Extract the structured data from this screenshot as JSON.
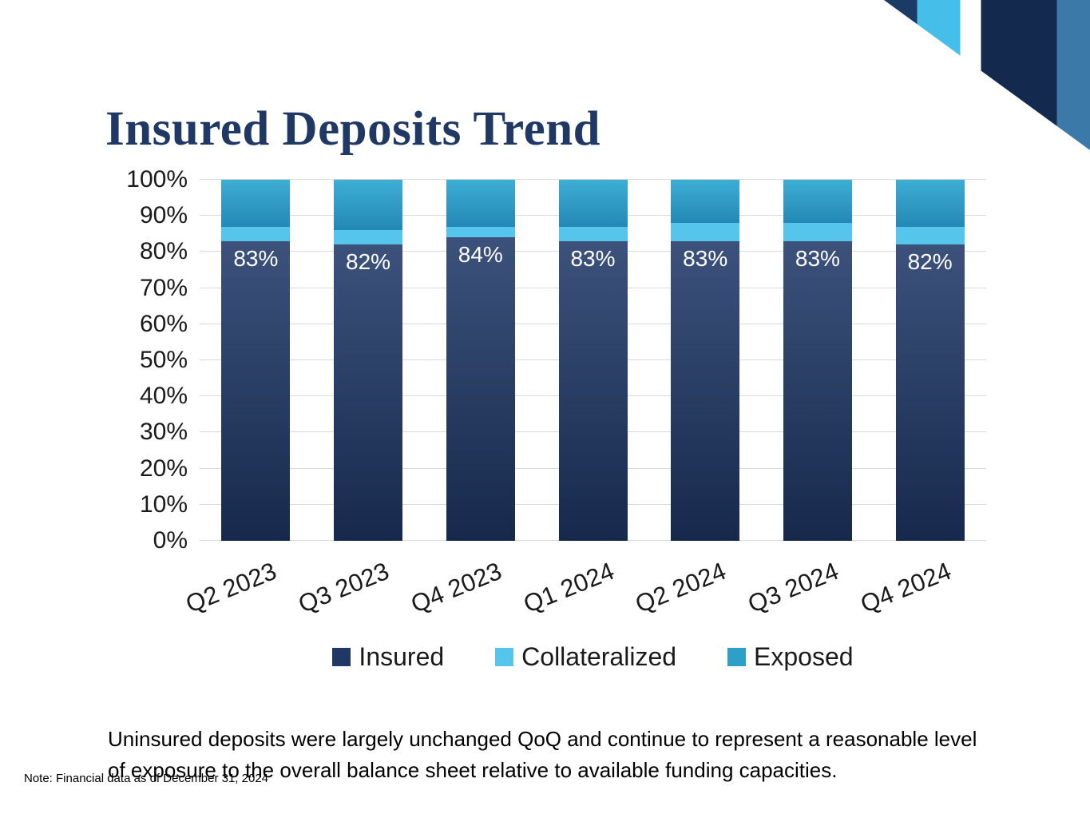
{
  "slide": {
    "title": "Insured Deposits Trend",
    "body_text": "Uninsured deposits were largely unchanged QoQ and continue to represent a reasonable level of exposure to the overall balance sheet relative to available funding capacities.",
    "note": "Note: Financial data as of December 31, 2024"
  },
  "colors": {
    "title_text": "#1F3864",
    "gridline": "#D9D9D9",
    "corner_navy": "#1B3A66",
    "corner_cyan": "#45BEE9",
    "corner_dark_navy": "#13294E",
    "corner_steel": "#3B79A8"
  },
  "chart_data": {
    "type": "bar",
    "stacked": true,
    "percent": true,
    "title": "Insured Deposits Trend",
    "categories": [
      "Q2 2023",
      "Q3 2023",
      "Q4 2023",
      "Q1 2024",
      "Q2 2024",
      "Q3 2024",
      "Q4 2024"
    ],
    "series": [
      {
        "name": "Insured",
        "values": [
          83,
          82,
          84,
          83,
          83,
          83,
          82
        ],
        "labels": [
          "83%",
          "82%",
          "84%",
          "83%",
          "83%",
          "83%",
          "82%"
        ],
        "color": "#3C527B",
        "color2": "#16294C",
        "legend_color": "#1F3864"
      },
      {
        "name": "Collateralized",
        "values": [
          4,
          4,
          3,
          4,
          5,
          5,
          5
        ],
        "color": "#55C5EC",
        "legend_color": "#55C5EC"
      },
      {
        "name": "Exposed",
        "values": [
          13,
          14,
          13,
          13,
          12,
          12,
          13
        ],
        "color": "#3DAED4",
        "color2": "#2488B6",
        "legend_color": "#2E9FC9"
      }
    ],
    "ylim": [
      0,
      100
    ],
    "yticks": [
      "0%",
      "10%",
      "20%",
      "30%",
      "40%",
      "50%",
      "60%",
      "70%",
      "80%",
      "90%",
      "100%"
    ],
    "grid": "horizontal",
    "legend_position": "bottom"
  }
}
